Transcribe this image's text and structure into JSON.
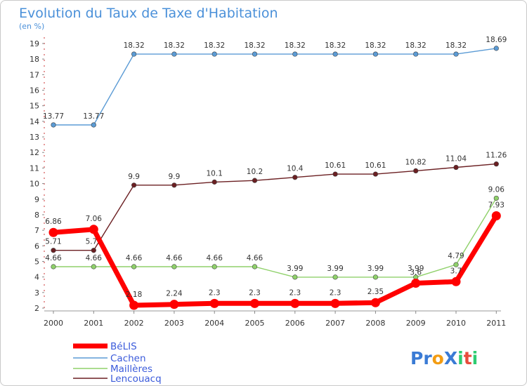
{
  "chart_data": {
    "type": "line",
    "title": "Evolution du Taux de Taxe d'Habitation",
    "subtitle": "(en %)",
    "x": [
      "2000",
      "2001",
      "2002",
      "2003",
      "2004",
      "2005",
      "2006",
      "2007",
      "2008",
      "2009",
      "2010",
      "2011"
    ],
    "ylim": [
      2,
      19
    ],
    "yticks": [
      2,
      3,
      4,
      5,
      6,
      7,
      8,
      9,
      10,
      11,
      12,
      13,
      14,
      15,
      16,
      17,
      18,
      19
    ],
    "grid": false,
    "legend_position": "bottom-left",
    "series": [
      {
        "name": "BéLIS",
        "color": "#ff0000",
        "values": [
          6.86,
          7.06,
          2.18,
          2.24,
          2.3,
          2.3,
          2.3,
          2.3,
          2.35,
          3.6,
          3.7,
          7.93
        ],
        "labels": [
          "6.86",
          "7.06",
          "2.18",
          "2.24",
          "2.3",
          "2.3",
          "2.3",
          "2.3",
          "2.35",
          "3.6",
          "3.7",
          "7.93"
        ]
      },
      {
        "name": "Cachen",
        "color": "#5b9bd5",
        "values": [
          13.77,
          13.77,
          18.32,
          18.32,
          18.32,
          18.32,
          18.32,
          18.32,
          18.32,
          18.32,
          18.32,
          18.69
        ],
        "labels": [
          "13.77",
          "13.77",
          "18.32",
          "18.32",
          "18.32",
          "18.32",
          "18.32",
          "18.32",
          "18.32",
          "18.32",
          "18.32",
          "18.69"
        ]
      },
      {
        "name": "Maillères",
        "color": "#8fd16a",
        "values": [
          4.66,
          4.66,
          4.66,
          4.66,
          4.66,
          4.66,
          3.99,
          3.99,
          3.99,
          3.99,
          4.79,
          9.06
        ],
        "labels": [
          "4.66",
          "4.66",
          "4.66",
          "4.66",
          "4.66",
          "4.66",
          "3.99",
          "3.99",
          "3.99",
          "3.99",
          "4.79",
          "9.06"
        ]
      },
      {
        "name": "Lencouacq",
        "color": "#6b1f22",
        "values": [
          5.71,
          5.71,
          9.9,
          9.9,
          10.1,
          10.2,
          10.4,
          10.61,
          10.61,
          10.82,
          11.04,
          11.26
        ],
        "labels": [
          "5.71",
          "5.71",
          "9.9",
          "9.9",
          "10.1",
          "10.2",
          "10.4",
          "10.61",
          "10.61",
          "10.82",
          "11.04",
          "11.26"
        ]
      }
    ]
  },
  "logo": {
    "text": "ProXiti",
    "letters": [
      "P",
      "r",
      "o",
      "X",
      "i",
      "t",
      "i"
    ],
    "colors": [
      "#3a7bd5",
      "#3a7bd5",
      "#f39c12",
      "#3a7bd5",
      "#2ecc71",
      "#e74c3c",
      "#2ecc71"
    ]
  }
}
